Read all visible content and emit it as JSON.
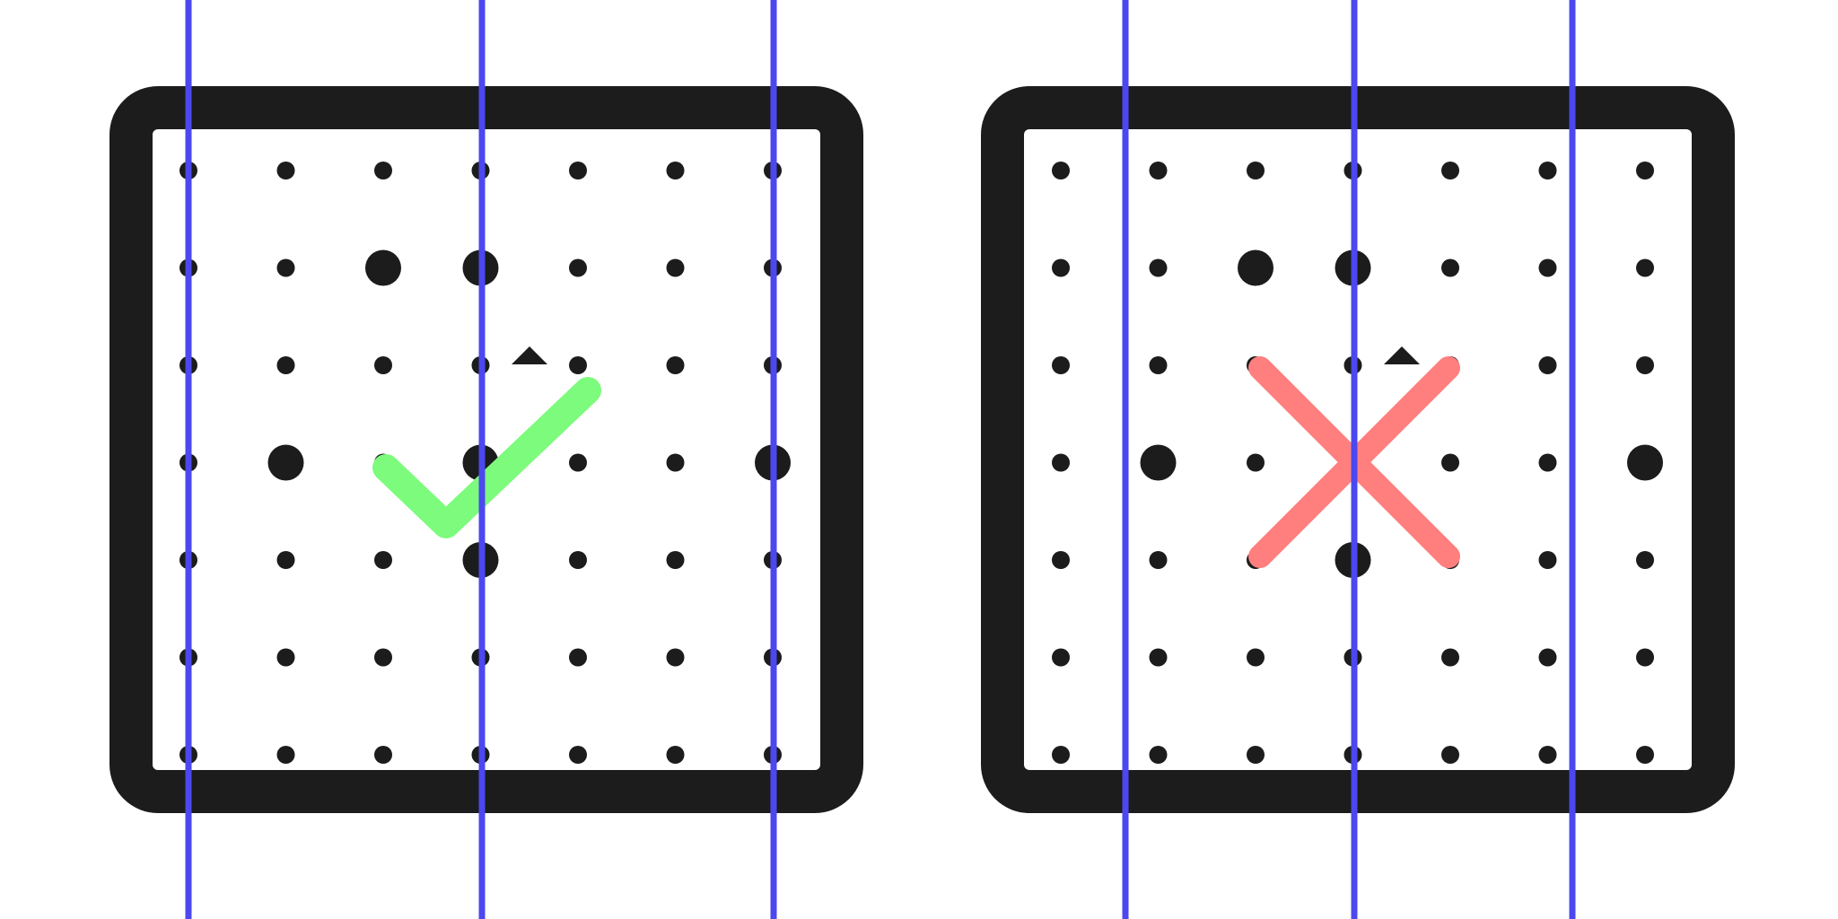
{
  "colors": {
    "background": "#ffffff",
    "frame": "#1c1c1c",
    "dot": "#1c1c1c",
    "guide_line": "#4b48ef",
    "correct_mark": "#7dfb7d",
    "incorrect_mark": "#ff7f7f"
  },
  "panels": [
    {
      "name": "correct-example",
      "verdict": "correct",
      "mark_icon": "checkmark-icon",
      "grid": {
        "rows": 7,
        "cols": 7
      },
      "large_dots": [
        [
          1,
          2
        ],
        [
          1,
          3
        ],
        [
          3,
          1
        ],
        [
          3,
          3
        ],
        [
          3,
          6
        ],
        [
          4,
          3
        ]
      ],
      "guide_line_count": 3
    },
    {
      "name": "incorrect-example",
      "verdict": "incorrect",
      "mark_icon": "cross-icon",
      "grid": {
        "rows": 7,
        "cols": 7
      },
      "large_dots": [
        [
          1,
          2
        ],
        [
          1,
          3
        ],
        [
          3,
          1
        ],
        [
          3,
          6
        ],
        [
          4,
          3
        ]
      ],
      "guide_line_count": 3
    }
  ]
}
